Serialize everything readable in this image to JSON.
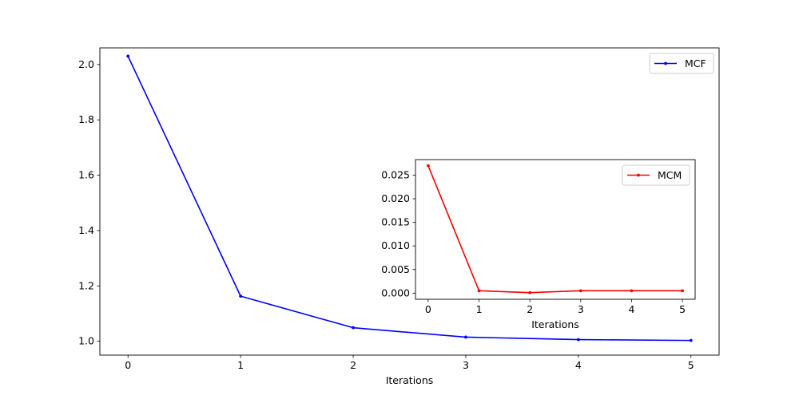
{
  "chart_data": [
    {
      "type": "line",
      "xlabel": "Iterations",
      "ylabel": "",
      "x": [
        0,
        1,
        2,
        3,
        4,
        5
      ],
      "xlim": [
        -0.25,
        5.25
      ],
      "ylim": [
        0.95,
        2.06
      ],
      "xticks": [
        0,
        1,
        2,
        3,
        4,
        5
      ],
      "xtick_labels": [
        "0",
        "1",
        "2",
        "3",
        "4",
        "5"
      ],
      "yticks": [
        1.0,
        1.2,
        1.4,
        1.6,
        1.8,
        2.0
      ],
      "ytick_labels": [
        "1.0",
        "1.2",
        "1.4",
        "1.6",
        "1.8",
        "2.0"
      ],
      "grid": false,
      "legend_position": "top-right",
      "series": [
        {
          "name": "MCF",
          "color": "#0000ff",
          "values": [
            2.03,
            1.163,
            1.049,
            1.015,
            1.006,
            1.003
          ]
        }
      ]
    },
    {
      "type": "line",
      "xlabel": "Iterations",
      "ylabel": "",
      "x": [
        0,
        1,
        2,
        3,
        4,
        5
      ],
      "xlim": [
        -0.25,
        5.25
      ],
      "ylim": [
        -0.0013,
        0.0283
      ],
      "xticks": [
        0,
        1,
        2,
        3,
        4,
        5
      ],
      "xtick_labels": [
        "0",
        "1",
        "2",
        "3",
        "4",
        "5"
      ],
      "yticks": [
        0.0,
        0.005,
        0.01,
        0.015,
        0.02,
        0.025
      ],
      "ytick_labels": [
        "0.000",
        "0.005",
        "0.010",
        "0.015",
        "0.020",
        "0.025"
      ],
      "grid": false,
      "legend_position": "top-right",
      "series": [
        {
          "name": "MCM",
          "color": "#ff0000",
          "values": [
            0.027,
            0.0005,
            0.0001,
            0.0005,
            0.0005,
            0.0005
          ]
        }
      ]
    }
  ]
}
